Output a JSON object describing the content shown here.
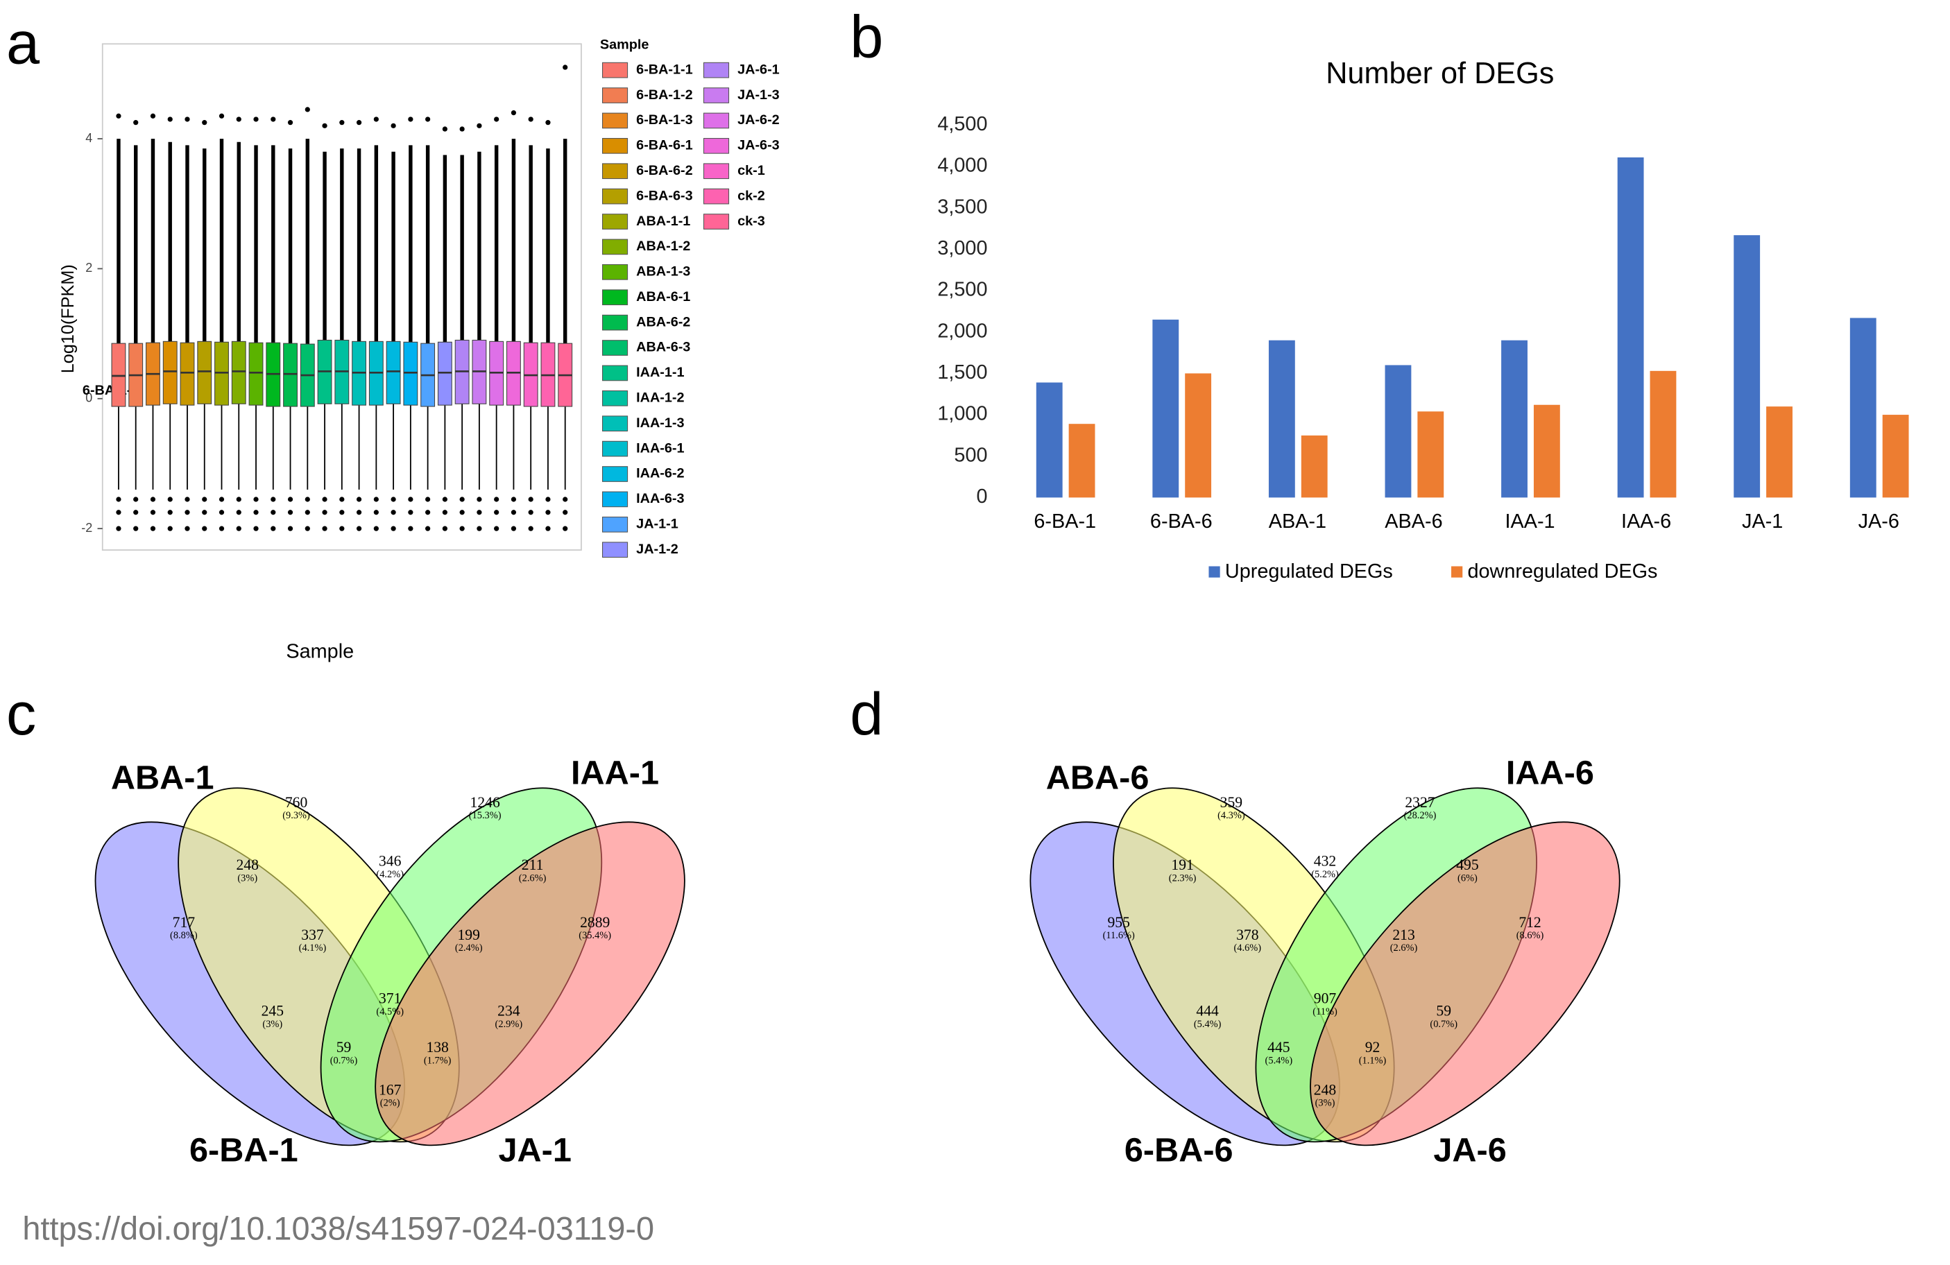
{
  "chart_data": [
    {
      "type": "box",
      "panel_label": "a",
      "y_label": "Log10(FPKM)",
      "x_label": "Sample",
      "legend_title": "Sample",
      "annotation": "6-BA-1-1",
      "ylim": [
        -2.33,
        5.46
      ],
      "yticks": [
        -2,
        0,
        2,
        4
      ],
      "samples": [
        {
          "name": "6-BA-1-1",
          "color": "#F8766D",
          "low": -1.4,
          "q1": -0.12,
          "median": 0.35,
          "q3": 0.85,
          "high": 4.0,
          "outliers": [
            4.35,
            -1.55,
            -1.75,
            -2.0
          ]
        },
        {
          "name": "6-BA-1-2",
          "color": "#F17D52",
          "low": -1.4,
          "q1": -0.12,
          "median": 0.36,
          "q3": 0.85,
          "high": 3.9,
          "outliers": [
            4.25,
            -1.55,
            -1.75,
            -2.0
          ]
        },
        {
          "name": "6-BA-1-3",
          "color": "#E7851E",
          "low": -1.4,
          "q1": -0.1,
          "median": 0.38,
          "q3": 0.86,
          "high": 4.0,
          "outliers": [
            4.35,
            -1.55,
            -1.75,
            -2.0
          ]
        },
        {
          "name": "6-BA-6-1",
          "color": "#D98E00",
          "low": -1.4,
          "q1": -0.08,
          "median": 0.42,
          "q3": 0.88,
          "high": 3.95,
          "outliers": [
            4.3,
            -1.55,
            -1.75,
            -2.0
          ]
        },
        {
          "name": "6-BA-6-2",
          "color": "#C79700",
          "low": -1.4,
          "q1": -0.1,
          "median": 0.4,
          "q3": 0.86,
          "high": 3.9,
          "outliers": [
            4.3,
            -1.55,
            -1.75,
            -2.0
          ]
        },
        {
          "name": "6-BA-6-3",
          "color": "#B49F00",
          "low": -1.4,
          "q1": -0.08,
          "median": 0.42,
          "q3": 0.88,
          "high": 3.85,
          "outliers": [
            4.25,
            -1.55,
            -1.75,
            -2.0
          ]
        },
        {
          "name": "ABA-1-1",
          "color": "#9DA700",
          "low": -1.4,
          "q1": -0.1,
          "median": 0.4,
          "q3": 0.87,
          "high": 4.0,
          "outliers": [
            4.35,
            -1.55,
            -1.75,
            -2.0
          ]
        },
        {
          "name": "ABA-1-2",
          "color": "#81AD00",
          "low": -1.4,
          "q1": -0.08,
          "median": 0.42,
          "q3": 0.88,
          "high": 3.95,
          "outliers": [
            4.3,
            -1.55,
            -1.75,
            -2.0
          ]
        },
        {
          "name": "ABA-1-3",
          "color": "#5BB300",
          "low": -1.4,
          "q1": -0.1,
          "median": 0.4,
          "q3": 0.86,
          "high": 3.9,
          "outliers": [
            4.3,
            -1.55,
            -1.75,
            -2.0
          ]
        },
        {
          "name": "ABA-6-1",
          "color": "#00B81F",
          "low": -1.4,
          "q1": -0.12,
          "median": 0.38,
          "q3": 0.86,
          "high": 3.9,
          "outliers": [
            4.3,
            -1.55,
            -1.75,
            -2.0
          ]
        },
        {
          "name": "ABA-6-2",
          "color": "#00BB4E",
          "low": -1.4,
          "q1": -0.12,
          "median": 0.38,
          "q3": 0.85,
          "high": 3.85,
          "outliers": [
            4.25,
            -1.55,
            -1.75,
            -2.0
          ]
        },
        {
          "name": "ABA-6-3",
          "color": "#00BE6C",
          "low": -1.4,
          "q1": -0.12,
          "median": 0.36,
          "q3": 0.84,
          "high": 4.0,
          "outliers": [
            4.45,
            -1.55,
            -1.75,
            -2.0
          ]
        },
        {
          "name": "IAA-1-1",
          "color": "#00C087",
          "low": -1.4,
          "q1": -0.08,
          "median": 0.42,
          "q3": 0.9,
          "high": 3.8,
          "outliers": [
            4.2,
            -1.55,
            -1.75,
            -2.0
          ]
        },
        {
          "name": "IAA-1-2",
          "color": "#00C0A0",
          "low": -1.4,
          "q1": -0.08,
          "median": 0.42,
          "q3": 0.9,
          "high": 3.85,
          "outliers": [
            4.25,
            -1.55,
            -1.75,
            -2.0
          ]
        },
        {
          "name": "IAA-1-3",
          "color": "#00BFB7",
          "low": -1.4,
          "q1": -0.1,
          "median": 0.4,
          "q3": 0.88,
          "high": 3.85,
          "outliers": [
            4.25,
            -1.55,
            -1.75,
            -2.0
          ]
        },
        {
          "name": "IAA-6-1",
          "color": "#00BCCC",
          "low": -1.4,
          "q1": -0.1,
          "median": 0.4,
          "q3": 0.88,
          "high": 3.9,
          "outliers": [
            4.3,
            -1.55,
            -1.75,
            -2.0
          ]
        },
        {
          "name": "IAA-6-2",
          "color": "#00B8DF",
          "low": -1.4,
          "q1": -0.08,
          "median": 0.42,
          "q3": 0.88,
          "high": 3.8,
          "outliers": [
            4.2,
            -1.55,
            -1.75,
            -2.0
          ]
        },
        {
          "name": "IAA-6-3",
          "color": "#00B1F0",
          "low": -1.4,
          "q1": -0.1,
          "median": 0.4,
          "q3": 0.87,
          "high": 3.9,
          "outliers": [
            4.3,
            -1.55,
            -1.75,
            -2.0
          ]
        },
        {
          "name": "JA-1-1",
          "color": "#4FA3FF",
          "low": -1.4,
          "q1": -0.12,
          "median": 0.36,
          "q3": 0.85,
          "high": 3.9,
          "outliers": [
            4.3,
            -1.55,
            -1.75,
            -2.0
          ]
        },
        {
          "name": "JA-1-2",
          "color": "#8F90FF",
          "low": -1.4,
          "q1": -0.1,
          "median": 0.4,
          "q3": 0.87,
          "high": 3.75,
          "outliers": [
            4.15,
            -1.55,
            -1.75,
            -2.0
          ]
        },
        {
          "name": "JA-6-1",
          "color": "#B084F5",
          "low": -1.4,
          "q1": -0.08,
          "median": 0.42,
          "q3": 0.9,
          "high": 3.75,
          "outliers": [
            4.15,
            -1.55,
            -1.75,
            -2.0
          ]
        },
        {
          "name": "JA-1-3",
          "color": "#C97BF0",
          "low": -1.4,
          "q1": -0.08,
          "median": 0.42,
          "q3": 0.9,
          "high": 3.8,
          "outliers": [
            4.2,
            -1.55,
            -1.75,
            -2.0
          ]
        },
        {
          "name": "JA-6-2",
          "color": "#DE70E8",
          "low": -1.4,
          "q1": -0.1,
          "median": 0.4,
          "q3": 0.88,
          "high": 3.9,
          "outliers": [
            4.3,
            -1.55,
            -1.75,
            -2.0
          ]
        },
        {
          "name": "JA-6-3",
          "color": "#EE68DA",
          "low": -1.4,
          "q1": -0.1,
          "median": 0.4,
          "q3": 0.88,
          "high": 4.0,
          "outliers": [
            4.4,
            -1.55,
            -1.75,
            -2.0
          ]
        },
        {
          "name": "ck-1",
          "color": "#F864C8",
          "low": -1.4,
          "q1": -0.12,
          "median": 0.36,
          "q3": 0.86,
          "high": 3.9,
          "outliers": [
            4.3,
            -1.55,
            -1.75,
            -2.0
          ]
        },
        {
          "name": "ck-2",
          "color": "#FD62B0",
          "low": -1.4,
          "q1": -0.12,
          "median": 0.36,
          "q3": 0.86,
          "high": 3.85,
          "outliers": [
            4.25,
            -1.55,
            -1.75,
            -2.0
          ]
        },
        {
          "name": "ck-3",
          "color": "#FF6596",
          "low": -1.4,
          "q1": -0.12,
          "median": 0.36,
          "q3": 0.85,
          "high": 4.0,
          "outliers": [
            5.1,
            -1.55,
            -1.75,
            -2.0
          ]
        }
      ]
    },
    {
      "type": "bar",
      "panel_label": "b",
      "title": "Number of DEGs",
      "categories": [
        "6-BA-1",
        "6-BA-6",
        "ABA-1",
        "ABA-6",
        "IAA-1",
        "IAA-6",
        "JA-1",
        "JA-6"
      ],
      "series": [
        {
          "name": "Upregulated DEGs",
          "color": "#4472C4",
          "values": [
            1390,
            2150,
            1900,
            1600,
            1900,
            4110,
            3170,
            2170
          ]
        },
        {
          "name": "downregulated DEGs",
          "color": "#ED7D31",
          "values": [
            890,
            1500,
            750,
            1040,
            1120,
            1530,
            1100,
            1000
          ]
        }
      ],
      "ylim": [
        0,
        4500
      ],
      "yticks": [
        0,
        500,
        {
          "value": 1000,
          "label": "1,000"
        },
        {
          "value": 1500,
          "label": "1,500"
        },
        {
          "value": 2000,
          "label": "2,000"
        },
        {
          "value": 2500,
          "label": "2,500"
        },
        {
          "value": 3000,
          "label": "3,000"
        },
        {
          "value": 3500,
          "label": "3,500"
        },
        {
          "value": 4000,
          "label": "4,000"
        },
        {
          "value": 4500,
          "label": "4,500"
        }
      ],
      "legend": "bottom"
    },
    {
      "type": "venn",
      "panel_label": "c",
      "sets": [
        {
          "name": "6-BA-1",
          "color": "#7B7BFF"
        },
        {
          "name": "ABA-1",
          "color": "#FFFF70"
        },
        {
          "name": "IAA-1",
          "color": "#70FF70"
        },
        {
          "name": "JA-1",
          "color": "#FF7070"
        }
      ],
      "values": [
        760,
        1246,
        248,
        346,
        211,
        717,
        337,
        199,
        2889,
        245,
        371,
        234,
        59,
        138,
        167
      ],
      "percents": [
        "(9.3%)",
        "(15.3%)",
        "(3%)",
        "(4.2%)",
        "(2.6%)",
        "(8.8%)",
        "(4.1%)",
        "(2.4%)",
        "(35.4%)",
        "(3%)",
        "(4.5%)",
        "(2.9%)",
        "(0.7%)",
        "(1.7%)",
        "(2%)"
      ]
    },
    {
      "type": "venn",
      "panel_label": "d",
      "sets": [
        {
          "name": "6-BA-6",
          "color": "#7B7BFF"
        },
        {
          "name": "ABA-6",
          "color": "#FFFF70"
        },
        {
          "name": "IAA-6",
          "color": "#70FF70"
        },
        {
          "name": "JA-6",
          "color": "#FF7070"
        }
      ],
      "values": [
        359,
        2327,
        191,
        432,
        495,
        955,
        378,
        213,
        712,
        444,
        907,
        59,
        445,
        92,
        248
      ],
      "percents": [
        "(4.3%)",
        "(28.2%)",
        "(2.3%)",
        "(5.2%)",
        "(6%)",
        "(11.6%)",
        "(4.6%)",
        "(2.6%)",
        "(8.6%)",
        "(5.4%)",
        "(11%)",
        "(0.7%)",
        "(5.4%)",
        "(1.1%)",
        "(3%)"
      ]
    }
  ],
  "source_url": "https://doi.org/10.1038/s41597-024-03119-0"
}
